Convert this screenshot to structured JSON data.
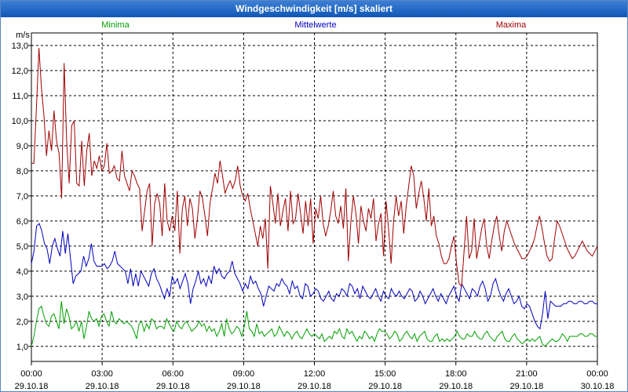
{
  "chart_data": {
    "type": "line",
    "title": "Windgeschwindigkeit [m/s] skaliert",
    "ylabel": "m/s",
    "ylim": [
      0.4,
      13.5
    ],
    "yticks": [
      "1,0",
      "2,0",
      "3,0",
      "4,0",
      "5,0",
      "6,0",
      "7,0",
      "8,0",
      "9,0",
      "10,0",
      "11,0",
      "12,0",
      "13,0"
    ],
    "xlim": [
      0,
      24
    ],
    "xticks": [
      {
        "time": "00:00",
        "date": "29.10.18"
      },
      {
        "time": "03:00",
        "date": "29.10.18"
      },
      {
        "time": "06:00",
        "date": "29.10.18"
      },
      {
        "time": "09:00",
        "date": "29.10.18"
      },
      {
        "time": "12:00",
        "date": "29.10.18"
      },
      {
        "time": "15:00",
        "date": "29.10.18"
      },
      {
        "time": "18:00",
        "date": "29.10.18"
      },
      {
        "time": "21:00",
        "date": "29.10.18"
      },
      {
        "time": "00:00",
        "date": "30.10.18"
      }
    ],
    "grid": true,
    "series": [
      {
        "name": "Minima",
        "color": "#00a000",
        "values": [
          1.0,
          1.4,
          2.0,
          2.5,
          2.6,
          2.2,
          1.9,
          1.8,
          2.2,
          2.3,
          2.0,
          1.7,
          2.8,
          1.9,
          2.5,
          2.2,
          1.7,
          1.8,
          2.0,
          1.6,
          2.0,
          1.3,
          1.8,
          2.4,
          2.1,
          2.0,
          2.1,
          1.8,
          2.2,
          2.3,
          2.0,
          1.8,
          2.4,
          2.0,
          1.9,
          2.1,
          2.0,
          1.9,
          2.0,
          1.9,
          1.8,
          1.6,
          1.3,
          1.9,
          2.0,
          1.6,
          1.9,
          1.7,
          2.1,
          2.0,
          1.7,
          1.8,
          1.8,
          1.7,
          2.1,
          1.9,
          1.7,
          1.6,
          2.0,
          1.8,
          1.7,
          1.9,
          2.0,
          1.8,
          1.6,
          1.7,
          1.8,
          2.0,
          1.8,
          1.9,
          1.6,
          1.8,
          1.6,
          1.7,
          1.4,
          1.6,
          1.9,
          1.4,
          2.1,
          1.7,
          1.5,
          1.6,
          1.8,
          1.7,
          1.4,
          1.8,
          2.4,
          1.7,
          1.6,
          1.4,
          1.9,
          1.5,
          1.6,
          1.4,
          1.5,
          1.6,
          1.7,
          1.4,
          1.5,
          1.8,
          1.6,
          1.4,
          1.6,
          1.5,
          1.3,
          1.5,
          1.6,
          1.4,
          1.3,
          1.5,
          1.7,
          1.5,
          1.4,
          1.5,
          1.4,
          1.3,
          1.5,
          1.2,
          1.3,
          1.4,
          1.3,
          1.6,
          1.5,
          1.7,
          1.4,
          1.3,
          1.7,
          1.5,
          1.6,
          1.4,
          1.2,
          1.4,
          1.3,
          1.6,
          1.5,
          1.3,
          1.4,
          1.2,
          1.5,
          1.7,
          1.6,
          1.6,
          1.5,
          1.3,
          1.4,
          1.6,
          1.5,
          1.2,
          1.3,
          1.5,
          1.6,
          1.4,
          1.3,
          1.5,
          1.2,
          1.4,
          1.5,
          1.6,
          1.3,
          1.2,
          1.2,
          1.4,
          1.5,
          1.2,
          1.3,
          1.2,
          1.3,
          1.2,
          1.3,
          1.4,
          1.6,
          1.4,
          1.3,
          1.3,
          1.5,
          1.4,
          1.4,
          1.6,
          1.4,
          1.3,
          1.3,
          1.5,
          1.6,
          1.4,
          1.3,
          1.2,
          1.4,
          1.5,
          1.6,
          1.3,
          1.2,
          1.2,
          1.4,
          1.5,
          1.3,
          1.2,
          1.1,
          1.2,
          1.3,
          1.2,
          1.3,
          1.2,
          1.3,
          1.4,
          1.1,
          1.0,
          1.1,
          1.2,
          1.3,
          1.2,
          1.2,
          1.3,
          1.5,
          1.4,
          1.2,
          1.4,
          1.4,
          1.4,
          1.4,
          1.5,
          1.5,
          1.4,
          1.4,
          1.5,
          1.5,
          1.4,
          1.4
        ]
      },
      {
        "name": "Mittelwerte",
        "color": "#0000c0",
        "values": [
          4.3,
          4.8,
          5.8,
          5.9,
          5.6,
          5.1,
          4.9,
          4.3,
          5.0,
          5.3,
          4.9,
          4.6,
          5.6,
          4.7,
          5.5,
          4.5,
          3.5,
          3.8,
          3.9,
          4.0,
          4.6,
          4.2,
          4.5,
          5.1,
          4.4,
          4.2,
          4.2,
          4.2,
          4.3,
          4.1,
          4.2,
          4.4,
          4.8,
          4.3,
          4.2,
          4.1,
          4.0,
          3.5,
          4.1,
          3.4,
          3.9,
          3.4,
          4.0,
          3.8,
          3.6,
          3.4,
          3.9,
          4.1,
          3.7,
          3.5,
          3.2,
          2.9,
          3.3,
          3.0,
          3.8,
          3.5,
          3.7,
          3.3,
          3.6,
          3.9,
          3.5,
          2.7,
          3.3,
          3.6,
          4.0,
          3.5,
          3.7,
          3.4,
          3.8,
          3.5,
          4.2,
          3.9,
          4.1,
          3.8,
          3.7,
          3.9,
          4.0,
          4.4,
          3.9,
          3.7,
          3.5,
          3.2,
          3.5,
          3.3,
          3.8,
          3.5,
          3.6,
          3.3,
          3.1,
          2.6,
          3.0,
          3.4,
          3.3,
          3.2,
          3.5,
          3.4,
          3.7,
          3.5,
          3.4,
          3.1,
          3.6,
          3.3,
          3.4,
          3.0,
          2.9,
          3.5,
          3.4,
          3.0,
          3.1,
          3.3,
          3.2,
          2.9,
          2.8,
          3.0,
          3.2,
          2.9,
          2.8,
          3.1,
          3.0,
          3.3,
          3.2,
          3.0,
          3.5,
          3.4,
          3.1,
          3.3,
          2.9,
          3.4,
          3.2,
          3.0,
          2.9,
          3.1,
          3.3,
          3.0,
          2.8,
          3.2,
          3.0,
          2.9,
          3.3,
          3.1,
          3.0,
          3.2,
          3.0,
          2.9,
          3.1,
          3.3,
          3.2,
          2.8,
          2.9,
          3.2,
          3.0,
          2.7,
          2.9,
          3.1,
          3.3,
          3.0,
          2.8,
          3.1,
          2.9,
          2.7,
          3.0,
          3.2,
          3.4,
          3.0,
          2.8,
          3.5,
          3.3,
          3.1,
          2.9,
          3.3,
          3.2,
          3.0,
          3.4,
          3.6,
          3.3,
          2.8,
          3.0,
          3.5,
          3.7,
          3.3,
          3.0,
          2.8,
          3.1,
          3.3,
          3.0,
          2.7,
          2.8,
          3.0,
          2.6,
          2.5,
          2.7,
          2.6,
          2.3,
          2.0,
          1.8,
          1.7,
          2.3,
          3.2,
          2.1,
          2.8,
          2.7,
          2.6,
          2.6,
          2.6,
          2.7,
          2.7,
          2.8,
          2.8,
          2.7,
          2.7,
          2.8,
          2.8,
          2.7,
          2.7,
          2.8,
          2.8,
          2.7,
          2.7
        ]
      },
      {
        "name": "Maxima",
        "color": "#a00000",
        "values": [
          8.3,
          8.3,
          10.5,
          12.9,
          11.3,
          10.2,
          8.6,
          9.6,
          8.8,
          10.4,
          9.2,
          8.7,
          6.9,
          12.3,
          9.2,
          7.5,
          9.8,
          10.0,
          7.5,
          7.4,
          9.2,
          7.4,
          8.8,
          9.5,
          7.8,
          8.4,
          8.1,
          8.6,
          8.0,
          8.2,
          9.1,
          7.9,
          8.0,
          8.2,
          7.7,
          7.6,
          8.8,
          7.8,
          7.5,
          7.2,
          8.0,
          7.8,
          7.5,
          7.3,
          5.6,
          6.4,
          7.2,
          7.5,
          5.0,
          6.7,
          7.1,
          6.7,
          5.4,
          7.5,
          6.0,
          5.6,
          6.2,
          5.6,
          7.2,
          4.7,
          6.5,
          7.0,
          5.8,
          6.9,
          6.5,
          5.3,
          6.1,
          7.2,
          6.9,
          6.2,
          5.4,
          6.7,
          7.3,
          7.9,
          7.5,
          8.4,
          7.8,
          7.1,
          7.4,
          7.6,
          7.3,
          7.6,
          8.2,
          7.4,
          7.0,
          6.8,
          7.1,
          6.5,
          6.0,
          5.5,
          5.0,
          5.8,
          5.3,
          6.1,
          4.1,
          7.4,
          6.7,
          5.9,
          7.1,
          5.8,
          6.4,
          6.9,
          5.6,
          7.2,
          5.9,
          6.1,
          7.1,
          6.3,
          5.5,
          6.8,
          5.8,
          6.9,
          5.1,
          6.5,
          6.1,
          7.0,
          5.9,
          5.4,
          5.8,
          6.4,
          7.2,
          6.2,
          5.9,
          6.6,
          5.7,
          7.3,
          4.4,
          6.0,
          7.0,
          6.3,
          5.1,
          6.6,
          6.0,
          5.6,
          6.5,
          6.1,
          6.9,
          5.2,
          5.9,
          6.3,
          4.6,
          6.8,
          5.7,
          4.3,
          6.0,
          7.0,
          6.2,
          6.8,
          5.5,
          6.6,
          7.4,
          8.2,
          7.8,
          6.5,
          7.1,
          7.6,
          6.9,
          6.0,
          7.3,
          5.8,
          6.2,
          5.4,
          5.1,
          4.6,
          4.3,
          4.3,
          4.5,
          5.0,
          5.4,
          4.3,
          3.5,
          3.4,
          4.8,
          6.2,
          4.5,
          4.8,
          6.1,
          4.5,
          5.1,
          5.7,
          6.1,
          5.0,
          4.5,
          5.2,
          5.8,
          6.2,
          5.4,
          4.8,
          5.6,
          6.0,
          5.7,
          5.4,
          5.1,
          4.9,
          4.7,
          4.5,
          4.5,
          4.6,
          4.8,
          5.0,
          5.3,
          5.8,
          6.2,
          5.7,
          5.1,
          4.6,
          4.4,
          4.5,
          5.3,
          6.0,
          5.8,
          5.5,
          5.2,
          4.9,
          4.7,
          4.5,
          4.6,
          4.8,
          5.0,
          5.2,
          5.0,
          4.8,
          4.7,
          4.6,
          4.8,
          5.0
        ]
      }
    ]
  }
}
